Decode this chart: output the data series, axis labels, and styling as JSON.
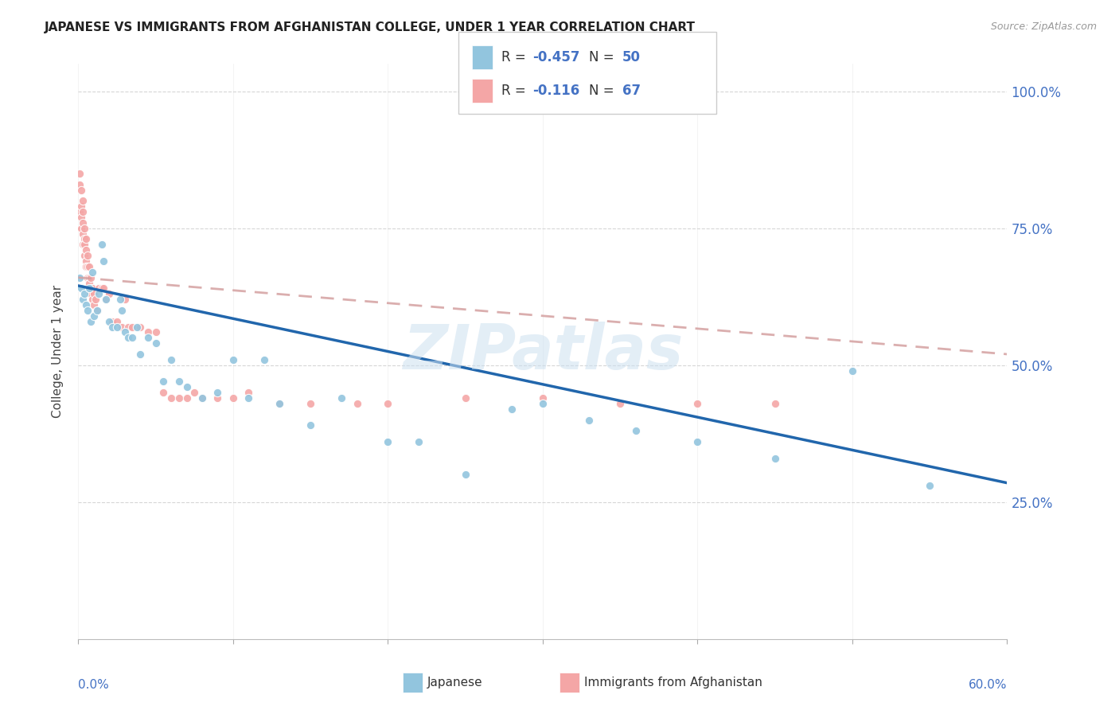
{
  "title": "JAPANESE VS IMMIGRANTS FROM AFGHANISTAN COLLEGE, UNDER 1 YEAR CORRELATION CHART",
  "source": "Source: ZipAtlas.com",
  "ylabel": "College, Under 1 year",
  "legend1_R": "-0.457",
  "legend1_N": "50",
  "legend2_R": "-0.116",
  "legend2_N": "67",
  "legend1_label": "Japanese",
  "legend2_label": "Immigrants from Afghanistan",
  "blue_color": "#92c5de",
  "pink_color": "#f4a6a6",
  "blue_line_color": "#2166ac",
  "pink_line_color": "#d4a0a0",
  "text_color": "#4472c4",
  "watermark": "ZIPatlas",
  "blue_scatter_x": [
    0.001,
    0.002,
    0.003,
    0.004,
    0.005,
    0.006,
    0.007,
    0.008,
    0.009,
    0.01,
    0.012,
    0.013,
    0.015,
    0.016,
    0.018,
    0.02,
    0.022,
    0.025,
    0.027,
    0.028,
    0.03,
    0.032,
    0.035,
    0.038,
    0.04,
    0.045,
    0.05,
    0.055,
    0.06,
    0.065,
    0.07,
    0.08,
    0.09,
    0.1,
    0.11,
    0.12,
    0.13,
    0.15,
    0.17,
    0.2,
    0.22,
    0.25,
    0.28,
    0.3,
    0.33,
    0.36,
    0.4,
    0.45,
    0.5,
    0.55
  ],
  "blue_scatter_y": [
    0.66,
    0.64,
    0.62,
    0.63,
    0.61,
    0.6,
    0.64,
    0.58,
    0.67,
    0.59,
    0.6,
    0.63,
    0.72,
    0.69,
    0.62,
    0.58,
    0.57,
    0.57,
    0.62,
    0.6,
    0.56,
    0.55,
    0.55,
    0.57,
    0.52,
    0.55,
    0.54,
    0.47,
    0.51,
    0.47,
    0.46,
    0.44,
    0.45,
    0.51,
    0.44,
    0.51,
    0.43,
    0.39,
    0.44,
    0.36,
    0.36,
    0.3,
    0.42,
    0.43,
    0.4,
    0.38,
    0.36,
    0.33,
    0.49,
    0.28
  ],
  "pink_scatter_x": [
    0.001,
    0.001,
    0.001,
    0.002,
    0.002,
    0.002,
    0.002,
    0.003,
    0.003,
    0.003,
    0.003,
    0.003,
    0.004,
    0.004,
    0.004,
    0.004,
    0.005,
    0.005,
    0.005,
    0.005,
    0.006,
    0.006,
    0.006,
    0.007,
    0.007,
    0.007,
    0.008,
    0.008,
    0.008,
    0.009,
    0.009,
    0.01,
    0.01,
    0.011,
    0.012,
    0.013,
    0.015,
    0.016,
    0.018,
    0.02,
    0.022,
    0.025,
    0.028,
    0.03,
    0.032,
    0.035,
    0.04,
    0.045,
    0.05,
    0.055,
    0.06,
    0.065,
    0.07,
    0.075,
    0.08,
    0.09,
    0.1,
    0.11,
    0.13,
    0.15,
    0.18,
    0.2,
    0.25,
    0.3,
    0.35,
    0.4,
    0.45
  ],
  "pink_scatter_y": [
    0.85,
    0.83,
    0.78,
    0.82,
    0.79,
    0.77,
    0.75,
    0.8,
    0.78,
    0.76,
    0.74,
    0.72,
    0.75,
    0.73,
    0.72,
    0.7,
    0.73,
    0.71,
    0.69,
    0.68,
    0.7,
    0.68,
    0.66,
    0.68,
    0.66,
    0.65,
    0.66,
    0.64,
    0.63,
    0.64,
    0.62,
    0.63,
    0.61,
    0.62,
    0.6,
    0.64,
    0.64,
    0.64,
    0.62,
    0.63,
    0.58,
    0.58,
    0.57,
    0.62,
    0.57,
    0.57,
    0.57,
    0.56,
    0.56,
    0.45,
    0.44,
    0.44,
    0.44,
    0.45,
    0.44,
    0.44,
    0.44,
    0.45,
    0.43,
    0.43,
    0.43,
    0.43,
    0.44,
    0.44,
    0.43,
    0.43,
    0.43
  ],
  "xmin": 0.0,
  "xmax": 0.6,
  "ymin": 0.0,
  "ymax": 1.05,
  "ytick_positions": [
    0.25,
    0.5,
    0.75,
    1.0
  ],
  "ytick_labels": [
    "25.0%",
    "50.0%",
    "75.0%",
    "100.0%"
  ],
  "blue_trend_x": [
    0.0,
    0.6
  ],
  "blue_trend_y": [
    0.645,
    0.285
  ],
  "pink_trend_x": [
    0.0,
    0.6
  ],
  "pink_trend_y": [
    0.66,
    0.52
  ]
}
